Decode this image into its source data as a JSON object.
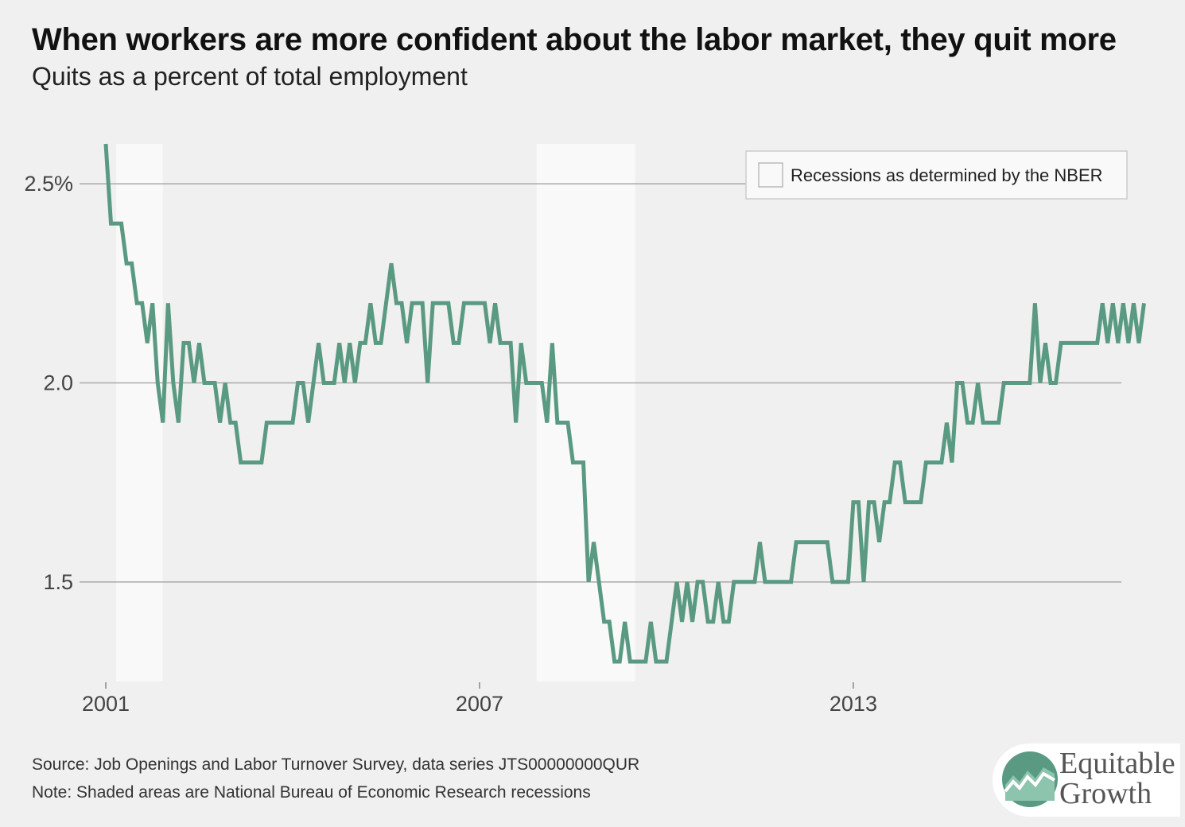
{
  "header": {
    "title": "When workers are more confident about the labor market, they quit more",
    "subtitle": "Quits as a percent of total employment"
  },
  "footer": {
    "source": "Source: Job Openings and Labor Turnover Survey, data series JTS00000000QUR",
    "note": "Note: Shaded areas are National Bureau of Economic Research recessions"
  },
  "logo": {
    "line1": "Equitable",
    "line2": "Growth"
  },
  "colors": {
    "line": "#5a9a82",
    "recession": "#f9f9f9",
    "grid": "#aaaaaa",
    "background": "#f0f0f0"
  },
  "chart_data": {
    "type": "line",
    "title": "When workers are more confident about the labor market, they quit more",
    "subtitle": "Quits as a percent of total employment",
    "xlabel": "",
    "ylabel": "",
    "x_start": "2001-01",
    "frequency": "monthly",
    "xlim": [
      2001.0,
      2017.75
    ],
    "ylim": [
      1.25,
      2.6
    ],
    "grid": true,
    "x_ticks": [
      {
        "value": 2001,
        "label": "2001"
      },
      {
        "value": 2007,
        "label": "2007"
      },
      {
        "value": 2013,
        "label": "2013"
      }
    ],
    "y_ticks": [
      {
        "value": 2.5,
        "label": "2.5%"
      },
      {
        "value": 2.0,
        "label": "2.0"
      },
      {
        "value": 1.5,
        "label": "1.5"
      }
    ],
    "legend": {
      "label": "Recessions as determined by the NBER",
      "position": "top-right"
    },
    "recessions": [
      {
        "start": "2001-03",
        "end": "2001-11"
      },
      {
        "start": "2007-12",
        "end": "2009-06"
      }
    ],
    "series": [
      {
        "values": [
          2.6,
          2.4,
          2.4,
          2.4,
          2.3,
          2.3,
          2.2,
          2.2,
          2.1,
          2.2,
          2.0,
          1.9,
          2.2,
          2.0,
          1.9,
          2.1,
          2.1,
          2.0,
          2.1,
          2.0,
          2.0,
          2.0,
          1.9,
          2.0,
          1.9,
          1.9,
          1.8,
          1.8,
          1.8,
          1.8,
          1.8,
          1.9,
          1.9,
          1.9,
          1.9,
          1.9,
          1.9,
          2.0,
          2.0,
          1.9,
          2.0,
          2.1,
          2.0,
          2.0,
          2.0,
          2.1,
          2.0,
          2.1,
          2.0,
          2.1,
          2.1,
          2.2,
          2.1,
          2.1,
          2.2,
          2.3,
          2.2,
          2.2,
          2.1,
          2.2,
          2.2,
          2.2,
          2.0,
          2.2,
          2.2,
          2.2,
          2.2,
          2.1,
          2.1,
          2.2,
          2.2,
          2.2,
          2.2,
          2.2,
          2.1,
          2.2,
          2.1,
          2.1,
          2.1,
          1.9,
          2.1,
          2.0,
          2.0,
          2.0,
          2.0,
          1.9,
          2.1,
          1.9,
          1.9,
          1.9,
          1.8,
          1.8,
          1.8,
          1.5,
          1.6,
          1.5,
          1.4,
          1.4,
          1.3,
          1.3,
          1.4,
          1.3,
          1.3,
          1.3,
          1.3,
          1.4,
          1.3,
          1.3,
          1.3,
          1.4,
          1.5,
          1.4,
          1.5,
          1.4,
          1.5,
          1.5,
          1.4,
          1.4,
          1.5,
          1.4,
          1.4,
          1.5,
          1.5,
          1.5,
          1.5,
          1.5,
          1.6,
          1.5,
          1.5,
          1.5,
          1.5,
          1.5,
          1.5,
          1.6,
          1.6,
          1.6,
          1.6,
          1.6,
          1.6,
          1.6,
          1.5,
          1.5,
          1.5,
          1.5,
          1.7,
          1.7,
          1.5,
          1.7,
          1.7,
          1.6,
          1.7,
          1.7,
          1.8,
          1.8,
          1.7,
          1.7,
          1.7,
          1.7,
          1.8,
          1.8,
          1.8,
          1.8,
          1.9,
          1.8,
          2.0,
          2.0,
          1.9,
          1.9,
          2.0,
          1.9,
          1.9,
          1.9,
          1.9,
          2.0,
          2.0,
          2.0,
          2.0,
          2.0,
          2.0,
          2.2,
          2.0,
          2.1,
          2.0,
          2.0,
          2.1,
          2.1,
          2.1,
          2.1,
          2.1,
          2.1,
          2.1,
          2.1,
          2.2,
          2.1,
          2.2,
          2.1,
          2.2,
          2.1,
          2.2,
          2.1,
          2.2
        ]
      }
    ]
  }
}
